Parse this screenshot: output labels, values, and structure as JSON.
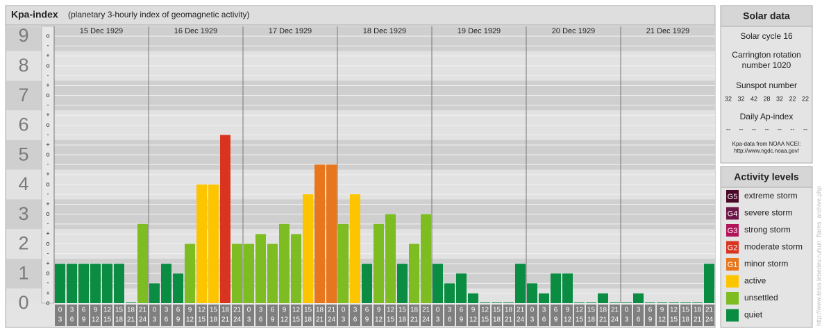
{
  "chart_data": {
    "type": "bar",
    "title": "Kpa-index",
    "subtitle": "(planetary 3-hourly index of geomagnetic activity)",
    "days": [
      "15 Dec 1929",
      "16 Dec 1929",
      "17 Dec 1929",
      "18 Dec 1929",
      "19 Dec 1929",
      "20 Dec 1929",
      "21 Dec 1929"
    ],
    "intervals": [
      [
        "0",
        "3"
      ],
      [
        "3",
        "6"
      ],
      [
        "6",
        "9"
      ],
      [
        "9",
        "12"
      ],
      [
        "12",
        "15"
      ],
      [
        "15",
        "18"
      ],
      [
        "18",
        "21"
      ],
      [
        "21",
        "24"
      ]
    ],
    "values": [
      1.33,
      1.33,
      1.33,
      1.33,
      1.33,
      1.33,
      0,
      2.67,
      0.67,
      1.33,
      1,
      2,
      4,
      4,
      5.67,
      2,
      2,
      2.33,
      2,
      2.67,
      2.33,
      3.67,
      4.67,
      4.67,
      2.67,
      3.67,
      1.33,
      2.67,
      3,
      1.33,
      2,
      3,
      1.33,
      0.67,
      1,
      0.33,
      0,
      0,
      0,
      1.33,
      0.67,
      0.33,
      1,
      1,
      0,
      0,
      0.33,
      0,
      0,
      0.33,
      0,
      0,
      0,
      0,
      0,
      1.33
    ],
    "colors": [
      "#0b8c43",
      "#0b8c43",
      "#0b8c43",
      "#0b8c43",
      "#0b8c43",
      "#0b8c43",
      "#0b8c43",
      "#7dbd22",
      "#0b8c43",
      "#0b8c43",
      "#0b8c43",
      "#7dbd22",
      "#fcc500",
      "#fcc500",
      "#d9341f",
      "#7dbd22",
      "#7dbd22",
      "#7dbd22",
      "#7dbd22",
      "#7dbd22",
      "#7dbd22",
      "#fcc500",
      "#e8761c",
      "#e8761c",
      "#7dbd22",
      "#fcc500",
      "#0b8c43",
      "#7dbd22",
      "#7dbd22",
      "#0b8c43",
      "#7dbd22",
      "#7dbd22",
      "#0b8c43",
      "#0b8c43",
      "#0b8c43",
      "#0b8c43",
      "#0b8c43",
      "#0b8c43",
      "#0b8c43",
      "#0b8c43",
      "#0b8c43",
      "#0b8c43",
      "#0b8c43",
      "#0b8c43",
      "#0b8c43",
      "#0b8c43",
      "#0b8c43",
      "#0b8c43",
      "#0b8c43",
      "#0b8c43",
      "#0b8c43",
      "#0b8c43",
      "#0b8c43",
      "#0b8c43",
      "#0b8c43",
      "#0b8c43"
    ],
    "ylim": [
      0,
      9.33
    ],
    "yticks": [
      0,
      1,
      2,
      3,
      4,
      5,
      6,
      7,
      8,
      9
    ],
    "yminor": [
      {
        "value": 0,
        "label": "o"
      },
      {
        "value": 0.33,
        "label": "+"
      },
      {
        "value": 0.67,
        "label": "-"
      },
      {
        "value": 1,
        "label": "o"
      },
      {
        "value": 1.33,
        "label": "+"
      },
      {
        "value": 1.67,
        "label": "-"
      },
      {
        "value": 2,
        "label": "o"
      },
      {
        "value": 2.33,
        "label": "+"
      },
      {
        "value": 2.67,
        "label": "-"
      },
      {
        "value": 3,
        "label": "o"
      },
      {
        "value": 3.33,
        "label": "+"
      },
      {
        "value": 3.67,
        "label": "-"
      },
      {
        "value": 4,
        "label": "o"
      },
      {
        "value": 4.33,
        "label": "+"
      },
      {
        "value": 4.67,
        "label": "-"
      },
      {
        "value": 5,
        "label": "o"
      },
      {
        "value": 5.33,
        "label": "+"
      },
      {
        "value": 5.67,
        "label": "-"
      },
      {
        "value": 6,
        "label": "o"
      },
      {
        "value": 6.33,
        "label": "+"
      },
      {
        "value": 6.67,
        "label": "-"
      },
      {
        "value": 7,
        "label": "o"
      },
      {
        "value": 7.33,
        "label": "+"
      },
      {
        "value": 7.67,
        "label": "-"
      },
      {
        "value": 8,
        "label": "o"
      },
      {
        "value": 8.33,
        "label": "+"
      },
      {
        "value": 8.67,
        "label": "-"
      },
      {
        "value": 9,
        "label": "o"
      }
    ],
    "grid": true
  },
  "solar": {
    "title": "Solar data",
    "cycle": "Solar cycle 16",
    "carrington": "Carrington rotation number 1020",
    "sunspot_title": "Sunspot number",
    "sunspots": [
      32,
      32,
      42,
      28,
      32,
      22,
      22
    ],
    "ap_title": "Daily Ap-index",
    "ap": [
      "--",
      "--",
      "--",
      "--",
      "--",
      "--",
      "--"
    ],
    "source": "Kpa-data from NOAA NCEI:",
    "source_url": "http://www.ngdc.noaa.gov/"
  },
  "activity": {
    "title": "Activity levels",
    "items": [
      {
        "code": "G5",
        "label": "extreme storm",
        "color": "#4b0828"
      },
      {
        "code": "G4",
        "label": "severe storm",
        "color": "#6e1547"
      },
      {
        "code": "G3",
        "label": "strong storm",
        "color": "#b2145b"
      },
      {
        "code": "G2",
        "label": "moderate storm",
        "color": "#d9341f"
      },
      {
        "code": "G1",
        "label": "minor storm",
        "color": "#e8761c"
      },
      {
        "label": "active",
        "color": "#fcc500"
      },
      {
        "label": "unsettled",
        "color": "#7dbd22"
      },
      {
        "label": "quiet",
        "color": "#0b8c43"
      }
    ]
  },
  "watermark": "http://www.tesis.lebedev.ru/sun_flares_archive.php"
}
